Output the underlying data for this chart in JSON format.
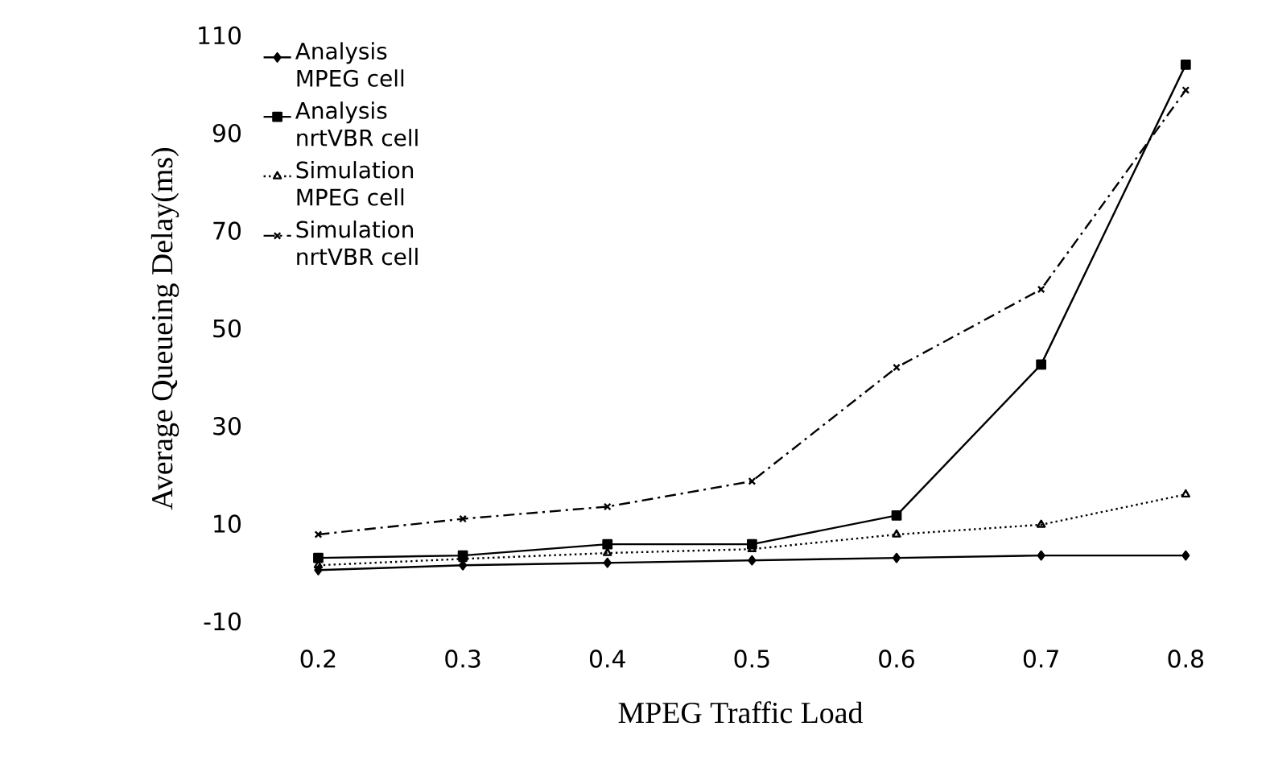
{
  "chart_data": {
    "type": "line",
    "xlabel": "MPEG Traffic Load",
    "ylabel": "Average Queueing Delay(ms)",
    "categories": [
      "0.2",
      "0.3",
      "0.4",
      "0.5",
      "0.6",
      "0.7",
      "0.8"
    ],
    "ylim": [
      -10,
      110
    ],
    "yticks": [
      -10,
      10,
      30,
      50,
      70,
      90,
      110
    ],
    "grid": false,
    "legend": "top left",
    "series": [
      {
        "name": "Analysis MPEG cell",
        "color": "#000000",
        "marker": "diamond",
        "line_style": "solid",
        "values": [
          0.5,
          1.5,
          2,
          2.5,
          3,
          3.5,
          3.5
        ]
      },
      {
        "name": "Analysis nrtVBR cell",
        "color": "#000000",
        "marker": "square",
        "line_style": "solid",
        "values": [
          3,
          3.5,
          5.8,
          5.8,
          11.7,
          42.6,
          104
        ]
      },
      {
        "name": "Simulation MPEG cell",
        "color": "#000000",
        "marker": "triangle",
        "line_style": "dotted",
        "values": [
          1.5,
          2.8,
          4,
          4.8,
          7.8,
          9.8,
          16
        ]
      },
      {
        "name": "Simulation nrtVBR cell",
        "color": "#000000",
        "marker": "cross",
        "line_style": "dashdot",
        "values": [
          7.8,
          11,
          13.5,
          18.7,
          42,
          58,
          98.8
        ]
      }
    ]
  }
}
